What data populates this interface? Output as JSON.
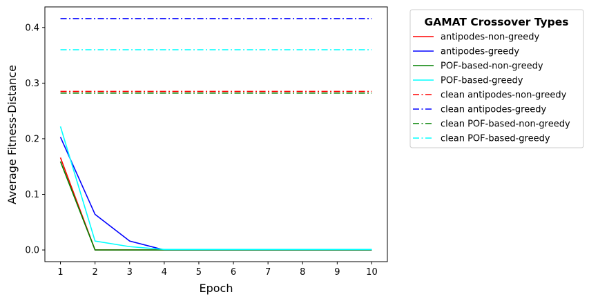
{
  "chart_data": {
    "type": "line",
    "xlabel": "Epoch",
    "ylabel": "Average Fitness-Distance",
    "x": [
      1,
      2,
      3,
      4,
      5,
      6,
      7,
      8,
      9,
      10
    ],
    "xlim": [
      0.55,
      10.45
    ],
    "ylim": [
      -0.021,
      0.437
    ],
    "xticks": [
      "1",
      "2",
      "3",
      "4",
      "5",
      "6",
      "7",
      "8",
      "9",
      "10"
    ],
    "yticks": [
      "0.0",
      "0.1",
      "0.2",
      "0.3",
      "0.4"
    ],
    "ytick_values": [
      0.0,
      0.1,
      0.2,
      0.3,
      0.4
    ],
    "grid": false,
    "legend": {
      "title": "GAMAT Crossover Types",
      "placement": "outside-right"
    },
    "series": [
      {
        "name": "antipodes-non-greedy",
        "color": "#ff0000",
        "style": "solid",
        "values": [
          0.166,
          0.0,
          0.0,
          0.0,
          0.0,
          0.0,
          0.0,
          0.0,
          0.0,
          0.0
        ]
      },
      {
        "name": "antipodes-greedy",
        "color": "#0000ff",
        "style": "solid",
        "values": [
          0.203,
          0.064,
          0.016,
          0.0,
          0.0,
          0.0,
          0.0,
          0.0,
          0.0,
          0.0
        ]
      },
      {
        "name": "POF-based-non-greedy",
        "color": "#008000",
        "style": "solid",
        "values": [
          0.159,
          0.0,
          0.0,
          0.0,
          0.0,
          0.0,
          0.0,
          0.0,
          0.0,
          0.0
        ]
      },
      {
        "name": "POF-based-greedy",
        "color": "#00ffff",
        "style": "solid",
        "values": [
          0.222,
          0.016,
          0.006,
          0.001,
          0.001,
          0.001,
          0.001,
          0.001,
          0.001,
          0.001
        ]
      },
      {
        "name": "clean antipodes-non-greedy",
        "color": "#ff0000",
        "style": "dashdot",
        "values": [
          0.285,
          0.285,
          0.285,
          0.285,
          0.285,
          0.285,
          0.285,
          0.285,
          0.285,
          0.285
        ]
      },
      {
        "name": "clean antipodes-greedy",
        "color": "#0000ff",
        "style": "dashdot",
        "values": [
          0.416,
          0.416,
          0.416,
          0.416,
          0.416,
          0.416,
          0.416,
          0.416,
          0.416,
          0.416
        ]
      },
      {
        "name": "clean POF-based-non-greedy",
        "color": "#008000",
        "style": "dashdot",
        "values": [
          0.282,
          0.282,
          0.282,
          0.282,
          0.282,
          0.282,
          0.282,
          0.282,
          0.282,
          0.282
        ]
      },
      {
        "name": "clean POF-based-greedy",
        "color": "#00ffff",
        "style": "dashdot",
        "values": [
          0.36,
          0.36,
          0.36,
          0.36,
          0.36,
          0.36,
          0.36,
          0.36,
          0.36,
          0.36
        ]
      }
    ]
  }
}
